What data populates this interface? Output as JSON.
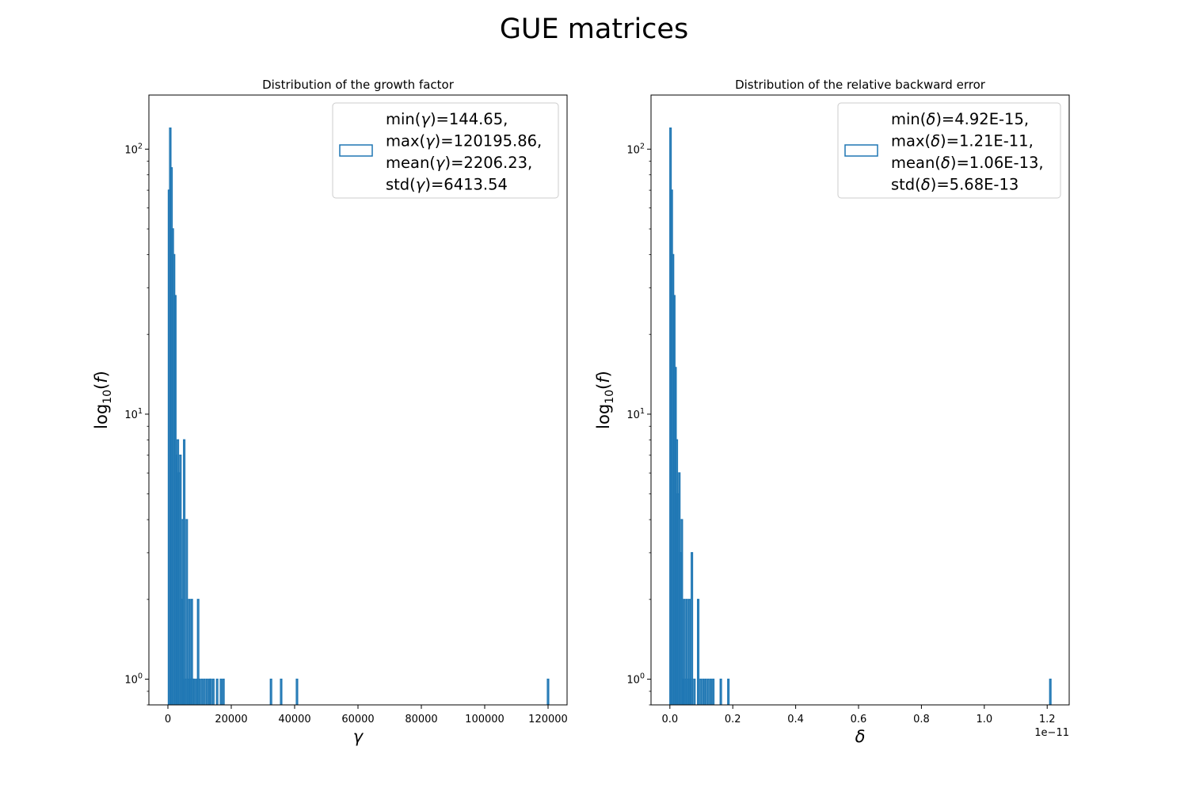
{
  "figure": {
    "title": "GUE matrices"
  },
  "colors": {
    "series": "#1f77b4",
    "axes": "#000000",
    "legend_border": "#cccccc",
    "background": "#ffffff"
  },
  "chart_data": [
    {
      "type": "histogram",
      "title": "Distribution of the growth factor",
      "xlabel": "γ",
      "ylabel": "log₁₀(f)",
      "yscale": "log",
      "xlim": [
        -6000,
        126000
      ],
      "ylim": [
        0.8,
        160
      ],
      "xticks": [
        0,
        20000,
        40000,
        60000,
        80000,
        100000,
        120000
      ],
      "xtick_labels": [
        "0",
        "20000",
        "40000",
        "60000",
        "80000",
        "100000",
        "120000"
      ],
      "yticks": [
        1,
        10,
        100
      ],
      "ytick_labels": [
        "10^0",
        "10^1",
        "10^2"
      ],
      "x_offset_label": "",
      "legend": {
        "placement": "upper right",
        "lines": [
          "min(γ)=144.65,",
          "max(γ)=120195.86,",
          "mean(γ)=2206.23,",
          "std(γ)=6413.54"
        ]
      },
      "series_style": "step",
      "bins": [
        {
          "x": 144.65,
          "w": 400,
          "y": 70
        },
        {
          "x": 544.65,
          "w": 400,
          "y": 120
        },
        {
          "x": 944.65,
          "w": 400,
          "y": 85
        },
        {
          "x": 1344.65,
          "w": 400,
          "y": 50
        },
        {
          "x": 1744.65,
          "w": 400,
          "y": 40
        },
        {
          "x": 2144.65,
          "w": 400,
          "y": 28
        },
        {
          "x": 2544.65,
          "w": 400,
          "y": 7
        },
        {
          "x": 2944.65,
          "w": 400,
          "y": 8
        },
        {
          "x": 3344.65,
          "w": 400,
          "y": 6
        },
        {
          "x": 3744.65,
          "w": 400,
          "y": 7
        },
        {
          "x": 4144.65,
          "w": 400,
          "y": 2
        },
        {
          "x": 4544.65,
          "w": 400,
          "y": 4
        },
        {
          "x": 4944.65,
          "w": 400,
          "y": 8
        },
        {
          "x": 5344.65,
          "w": 400,
          "y": 1
        },
        {
          "x": 5744.65,
          "w": 400,
          "y": 4
        },
        {
          "x": 6144.65,
          "w": 400,
          "y": 1
        },
        {
          "x": 6544.65,
          "w": 400,
          "y": 2
        },
        {
          "x": 6944.65,
          "w": 400,
          "y": 1
        },
        {
          "x": 7344.65,
          "w": 400,
          "y": 2
        },
        {
          "x": 7744.65,
          "w": 400,
          "y": 1
        },
        {
          "x": 8144.65,
          "w": 400,
          "y": 1
        },
        {
          "x": 8944.65,
          "w": 400,
          "y": 1
        },
        {
          "x": 9344.65,
          "w": 400,
          "y": 2
        },
        {
          "x": 9744.65,
          "w": 400,
          "y": 1
        },
        {
          "x": 10544.65,
          "w": 400,
          "y": 1
        },
        {
          "x": 11344.65,
          "w": 400,
          "y": 1
        },
        {
          "x": 12144.65,
          "w": 400,
          "y": 1
        },
        {
          "x": 12944.65,
          "w": 400,
          "y": 1
        },
        {
          "x": 13344.65,
          "w": 400,
          "y": 1
        },
        {
          "x": 14144.65,
          "w": 400,
          "y": 1
        },
        {
          "x": 15344.65,
          "w": 400,
          "y": 1
        },
        {
          "x": 16544.65,
          "w": 400,
          "y": 1
        },
        {
          "x": 17344.65,
          "w": 400,
          "y": 1
        },
        {
          "x": 32344.65,
          "w": 400,
          "y": 1
        },
        {
          "x": 35544.65,
          "w": 400,
          "y": 1
        },
        {
          "x": 40544.65,
          "w": 400,
          "y": 1
        },
        {
          "x": 119795.86,
          "w": 400,
          "y": 1
        }
      ]
    },
    {
      "type": "histogram",
      "title": "Distribution of the relative backward error",
      "xlabel": "δ",
      "ylabel": "log₁₀(f)",
      "yscale": "log",
      "xlim": [
        -6e-13,
        1.27e-11
      ],
      "ylim": [
        0.8,
        160
      ],
      "xticks": [
        0,
        2e-12,
        4e-12,
        6e-12,
        8e-12,
        1e-11,
        1.2e-11
      ],
      "xtick_labels": [
        "0.0",
        "0.2",
        "0.4",
        "0.6",
        "0.8",
        "1.0",
        "1.2"
      ],
      "yticks": [
        1,
        10,
        100
      ],
      "ytick_labels": [
        "10^0",
        "10^1",
        "10^2"
      ],
      "x_offset_label": "1e−11",
      "legend": {
        "placement": "upper right",
        "lines": [
          "min(δ)=4.92E-15,",
          "max(δ)=1.21E-11,",
          "mean(δ)=1.06E-13,",
          "std(δ)=5.68E-13"
        ]
      },
      "series_style": "step",
      "bins": [
        {
          "x": 0.0,
          "w": 4e-14,
          "y": 120
        },
        {
          "x": 4e-14,
          "w": 4e-14,
          "y": 70
        },
        {
          "x": 8e-14,
          "w": 4e-14,
          "y": 40
        },
        {
          "x": 1.2e-13,
          "w": 4e-14,
          "y": 28
        },
        {
          "x": 1.6e-13,
          "w": 4e-14,
          "y": 15
        },
        {
          "x": 2e-13,
          "w": 4e-14,
          "y": 8
        },
        {
          "x": 2.4e-13,
          "w": 4e-14,
          "y": 5
        },
        {
          "x": 2.8e-13,
          "w": 4e-14,
          "y": 6
        },
        {
          "x": 3.2e-13,
          "w": 4e-14,
          "y": 3
        },
        {
          "x": 3.6e-13,
          "w": 4e-14,
          "y": 4
        },
        {
          "x": 4e-13,
          "w": 4e-14,
          "y": 1
        },
        {
          "x": 4.4e-13,
          "w": 4e-14,
          "y": 2
        },
        {
          "x": 4.8e-13,
          "w": 4e-14,
          "y": 1
        },
        {
          "x": 5.2e-13,
          "w": 4e-14,
          "y": 2
        },
        {
          "x": 5.6e-13,
          "w": 4e-14,
          "y": 1
        },
        {
          "x": 6e-13,
          "w": 4e-14,
          "y": 2
        },
        {
          "x": 6.4e-13,
          "w": 4e-14,
          "y": 1
        },
        {
          "x": 6.8e-13,
          "w": 4e-14,
          "y": 3
        },
        {
          "x": 7.6e-13,
          "w": 4e-14,
          "y": 1
        },
        {
          "x": 8.8e-13,
          "w": 4e-14,
          "y": 2
        },
        {
          "x": 9.6e-13,
          "w": 4e-14,
          "y": 1
        },
        {
          "x": 1.04e-12,
          "w": 4e-14,
          "y": 1
        },
        {
          "x": 1.12e-12,
          "w": 4e-14,
          "y": 1
        },
        {
          "x": 1.2e-12,
          "w": 4e-14,
          "y": 1
        },
        {
          "x": 1.28e-12,
          "w": 4e-14,
          "y": 1
        },
        {
          "x": 1.36e-12,
          "w": 4e-14,
          "y": 1
        },
        {
          "x": 1.6e-12,
          "w": 4e-14,
          "y": 1
        },
        {
          "x": 1.84e-12,
          "w": 4e-14,
          "y": 1
        },
        {
          "x": 1.208e-11,
          "w": 4e-14,
          "y": 1
        }
      ]
    }
  ]
}
